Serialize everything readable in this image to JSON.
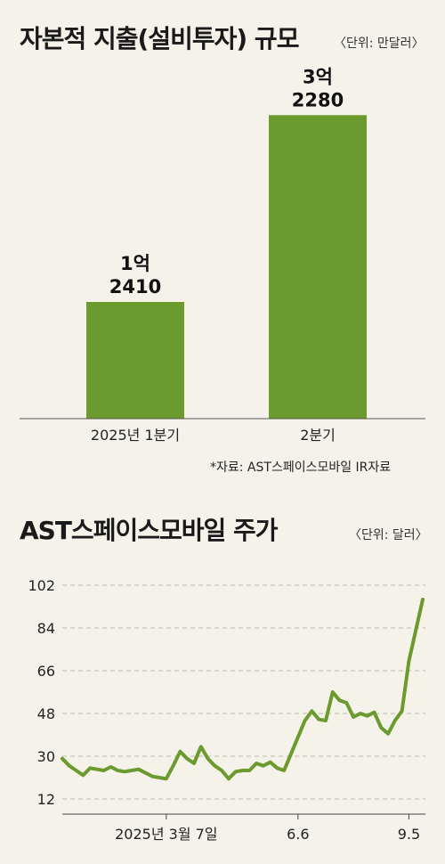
{
  "chart_data": [
    {
      "type": "bar",
      "title": "자본적 지출(설비투자) 규모",
      "unit": "〈단위: 만달러〉",
      "categories": [
        "2025년 1분기",
        "2분기"
      ],
      "values": [
        12410,
        32280
      ],
      "value_labels": [
        {
          "line1": "1억",
          "line2": "2410"
        },
        {
          "line1": "3억",
          "line2": "2280"
        }
      ],
      "ylim": [
        0,
        36000
      ],
      "color": "#6b9a2e",
      "source": "*자료: AST스페이스모바일 IR자료"
    },
    {
      "type": "line",
      "title": "AST스페이스모바일 주가",
      "unit": "〈단위: 달러〉",
      "ylim": [
        12,
        102
      ],
      "yticks": [
        102,
        84,
        66,
        48,
        30,
        12
      ],
      "xlabels": [
        "2025년 3월 7일",
        "6.6",
        "9.5"
      ],
      "xlabel_index": [
        15,
        34,
        50
      ],
      "color": "#6b9a2e",
      "grid": true,
      "values": [
        29,
        26,
        24,
        22,
        25,
        24.5,
        24,
        25.5,
        24,
        23.5,
        24,
        24.5,
        23,
        21.5,
        21,
        20.5,
        26,
        32,
        29,
        27,
        34,
        29,
        26,
        24,
        20.5,
        23.5,
        24,
        24,
        27,
        26,
        27.5,
        25,
        24,
        31,
        38,
        45,
        49,
        45.5,
        45,
        57,
        53.5,
        52.5,
        46.5,
        48,
        47,
        48.5,
        42,
        39.5,
        45,
        49,
        70,
        83,
        96
      ]
    }
  ]
}
